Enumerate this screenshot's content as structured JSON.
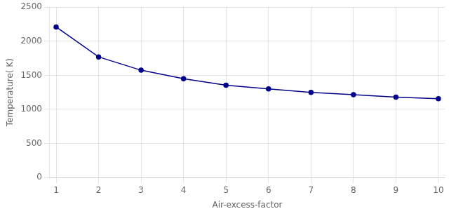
{
  "chart_data": {
    "type": "line",
    "x": [
      1,
      2,
      3,
      4,
      5,
      6,
      7,
      8,
      9,
      10
    ],
    "values": [
      2210,
      1770,
      1575,
      1450,
      1355,
      1300,
      1250,
      1215,
      1180,
      1158
    ],
    "color": "#00008B",
    "marker": "circle",
    "xlabel": "Air-excess-factor",
    "ylabel": "Temperature( K)",
    "xlim": [
      0.85,
      10.15
    ],
    "ylim": [
      0,
      2500
    ],
    "xticks": [
      1,
      2,
      3,
      4,
      5,
      6,
      7,
      8,
      9,
      10
    ],
    "yticks": [
      0,
      500,
      1000,
      1500,
      2000,
      2500
    ],
    "grid": true
  }
}
